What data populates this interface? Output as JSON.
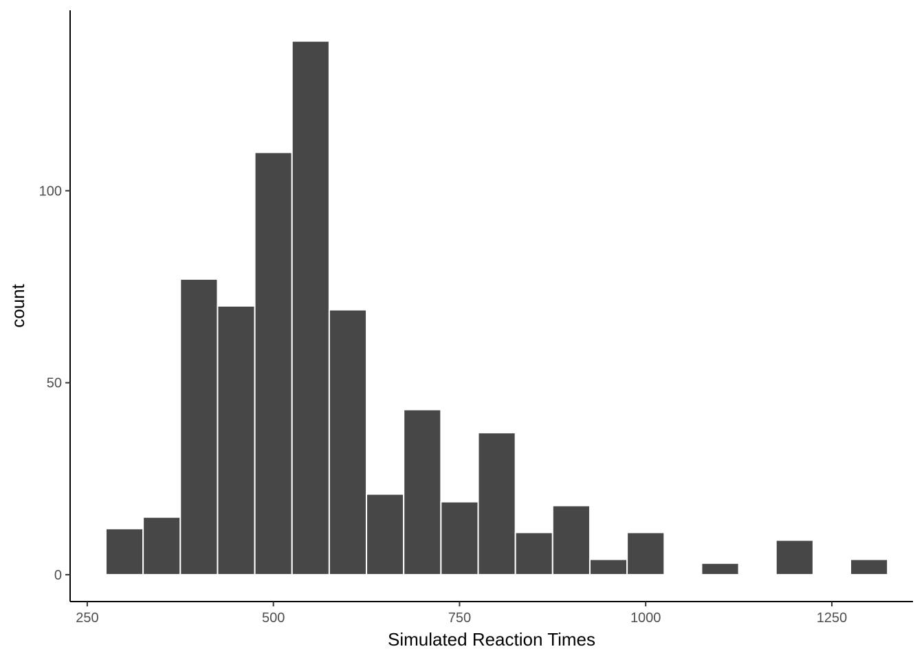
{
  "chart_data": {
    "type": "bar",
    "chart_subtype": "histogram",
    "xlabel": "Simulated Reaction Times",
    "ylabel": "count",
    "xlim": [
      227,
      1359
    ],
    "ylim": [
      -7,
      147
    ],
    "x_ticks": [
      250,
      500,
      750,
      1000,
      1250
    ],
    "y_ticks": [
      0,
      50,
      100
    ],
    "x_tick_labels": [
      "250",
      "500",
      "750",
      "1000",
      "1250"
    ],
    "y_tick_labels": [
      "0",
      "50",
      "100"
    ],
    "bin_width": 50,
    "bins": [
      {
        "x_start": 275,
        "x_end": 325,
        "count": 12
      },
      {
        "x_start": 325,
        "x_end": 375,
        "count": 15
      },
      {
        "x_start": 375,
        "x_end": 425,
        "count": 77
      },
      {
        "x_start": 425,
        "x_end": 475,
        "count": 70
      },
      {
        "x_start": 475,
        "x_end": 525,
        "count": 110
      },
      {
        "x_start": 525,
        "x_end": 575,
        "count": 139
      },
      {
        "x_start": 575,
        "x_end": 625,
        "count": 69
      },
      {
        "x_start": 625,
        "x_end": 675,
        "count": 21
      },
      {
        "x_start": 675,
        "x_end": 725,
        "count": 43
      },
      {
        "x_start": 725,
        "x_end": 775,
        "count": 19
      },
      {
        "x_start": 775,
        "x_end": 825,
        "count": 37
      },
      {
        "x_start": 825,
        "x_end": 875,
        "count": 11
      },
      {
        "x_start": 875,
        "x_end": 925,
        "count": 18
      },
      {
        "x_start": 925,
        "x_end": 975,
        "count": 4
      },
      {
        "x_start": 975,
        "x_end": 1025,
        "count": 11
      },
      {
        "x_start": 1025,
        "x_end": 1075,
        "count": 0
      },
      {
        "x_start": 1075,
        "x_end": 1125,
        "count": 3
      },
      {
        "x_start": 1125,
        "x_end": 1175,
        "count": 0
      },
      {
        "x_start": 1175,
        "x_end": 1225,
        "count": 9
      },
      {
        "x_start": 1225,
        "x_end": 1275,
        "count": 0
      },
      {
        "x_start": 1275,
        "x_end": 1325,
        "count": 4
      }
    ],
    "bar_fill": "#474747",
    "bar_outline": "#ffffff",
    "axis_color": "#000000",
    "grid": false,
    "legend": "none"
  }
}
